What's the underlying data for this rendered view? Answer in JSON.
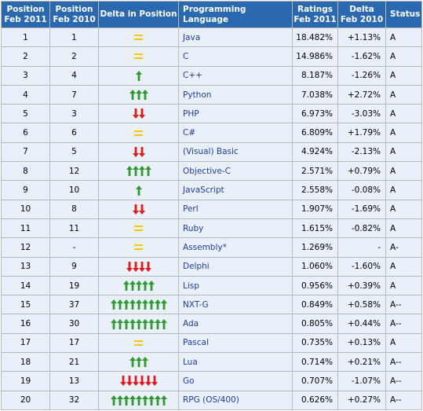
{
  "columns": {
    "pos2011": [
      "Position",
      "Feb 2011"
    ],
    "pos2010": [
      "Position",
      "Feb 2010"
    ],
    "delta_pos": "Delta in Position",
    "language": "Programming Language",
    "ratings": [
      "Ratings",
      "Feb 2011"
    ],
    "delta_ratings": [
      "Delta",
      "Feb 2010"
    ],
    "status": "Status"
  },
  "colors": {
    "header_bg": "#2a69b0",
    "row_bg": "#eaf0f9",
    "up": "#2e9a2e",
    "down": "#e01b1b",
    "same": "#f5c518",
    "link": "#1f3ca0"
  },
  "rows": [
    {
      "pos2011": "1",
      "pos2010": "1",
      "trend": "same",
      "count": 0,
      "language": "Java",
      "rating": "18.482%",
      "delta": "+1.13%",
      "status": "A"
    },
    {
      "pos2011": "2",
      "pos2010": "2",
      "trend": "same",
      "count": 0,
      "language": "C",
      "rating": "14.986%",
      "delta": "-1.62%",
      "status": "A"
    },
    {
      "pos2011": "3",
      "pos2010": "4",
      "trend": "up",
      "count": 1,
      "language": "C++",
      "rating": "8.187%",
      "delta": "-1.26%",
      "status": "A"
    },
    {
      "pos2011": "4",
      "pos2010": "7",
      "trend": "up",
      "count": 3,
      "language": "Python",
      "rating": "7.038%",
      "delta": "+2.72%",
      "status": "A"
    },
    {
      "pos2011": "5",
      "pos2010": "3",
      "trend": "down",
      "count": 2,
      "language": "PHP",
      "rating": "6.973%",
      "delta": "-3.03%",
      "status": "A"
    },
    {
      "pos2011": "6",
      "pos2010": "6",
      "trend": "same",
      "count": 0,
      "language": "C#",
      "rating": "6.809%",
      "delta": "+1.79%",
      "status": "A"
    },
    {
      "pos2011": "7",
      "pos2010": "5",
      "trend": "down",
      "count": 2,
      "language": "(Visual) Basic",
      "rating": "4.924%",
      "delta": "-2.13%",
      "status": "A"
    },
    {
      "pos2011": "8",
      "pos2010": "12",
      "trend": "up",
      "count": 4,
      "language": "Objective-C",
      "rating": "2.571%",
      "delta": "+0.79%",
      "status": "A"
    },
    {
      "pos2011": "9",
      "pos2010": "10",
      "trend": "up",
      "count": 1,
      "language": "JavaScript",
      "rating": "2.558%",
      "delta": "-0.08%",
      "status": "A"
    },
    {
      "pos2011": "10",
      "pos2010": "8",
      "trend": "down",
      "count": 2,
      "language": "Perl",
      "rating": "1.907%",
      "delta": "-1.69%",
      "status": "A"
    },
    {
      "pos2011": "11",
      "pos2010": "11",
      "trend": "same",
      "count": 0,
      "language": "Ruby",
      "rating": "1.615%",
      "delta": "-0.82%",
      "status": "A"
    },
    {
      "pos2011": "12",
      "pos2010": "-",
      "trend": "same",
      "count": 0,
      "language": "Assembly*",
      "rating": "1.269%",
      "delta": "-",
      "status": "A-"
    },
    {
      "pos2011": "13",
      "pos2010": "9",
      "trend": "down",
      "count": 4,
      "language": "Delphi",
      "rating": "1.060%",
      "delta": "-1.60%",
      "status": "A"
    },
    {
      "pos2011": "14",
      "pos2010": "19",
      "trend": "up",
      "count": 5,
      "language": "Lisp",
      "rating": "0.956%",
      "delta": "+0.39%",
      "status": "A"
    },
    {
      "pos2011": "15",
      "pos2010": "37",
      "trend": "up",
      "count": 9,
      "language": "NXT-G",
      "rating": "0.849%",
      "delta": "+0.58%",
      "status": "A--"
    },
    {
      "pos2011": "16",
      "pos2010": "30",
      "trend": "up",
      "count": 9,
      "language": "Ada",
      "rating": "0.805%",
      "delta": "+0.44%",
      "status": "A--"
    },
    {
      "pos2011": "17",
      "pos2010": "17",
      "trend": "same",
      "count": 0,
      "language": "Pascal",
      "rating": "0.735%",
      "delta": "+0.13%",
      "status": "A"
    },
    {
      "pos2011": "18",
      "pos2010": "21",
      "trend": "up",
      "count": 3,
      "language": "Lua",
      "rating": "0.714%",
      "delta": "+0.21%",
      "status": "A--"
    },
    {
      "pos2011": "19",
      "pos2010": "13",
      "trend": "down",
      "count": 6,
      "language": "Go",
      "rating": "0.707%",
      "delta": "-1.07%",
      "status": "A--"
    },
    {
      "pos2011": "20",
      "pos2010": "32",
      "trend": "up",
      "count": 9,
      "language": "RPG (OS/400)",
      "rating": "0.626%",
      "delta": "+0.27%",
      "status": "A--"
    }
  ]
}
